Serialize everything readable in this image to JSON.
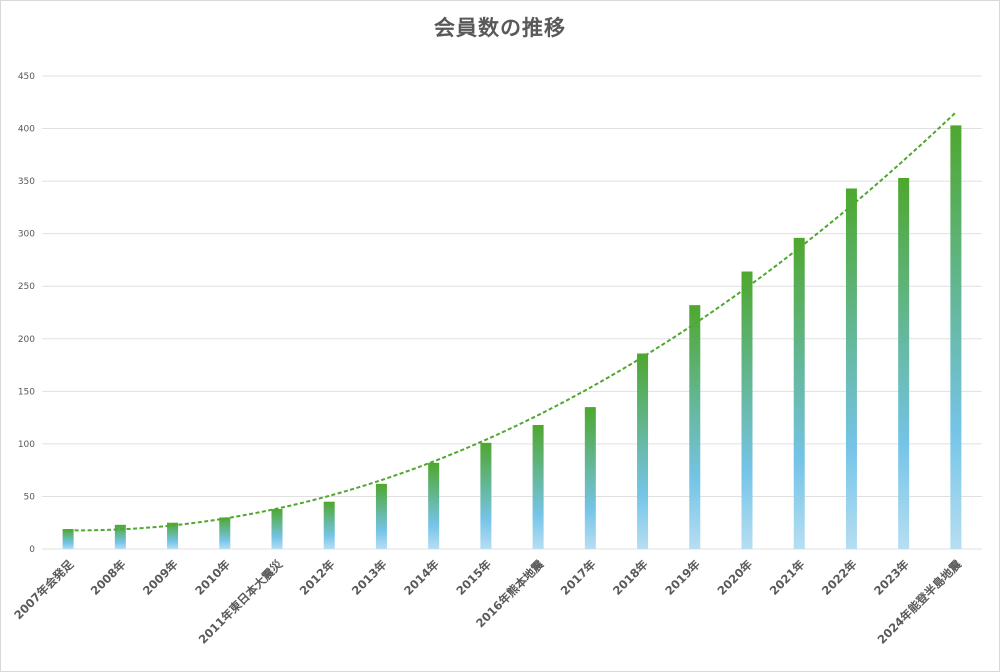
{
  "chart_data": {
    "type": "bar",
    "title": "会員数の推移",
    "categories": [
      "2007年会発足",
      "2008年",
      "2009年",
      "2010年",
      "2011年東日本大震災",
      "2012年",
      "2013年",
      "2014年",
      "2015年",
      "2016年熊本地震",
      "2017年",
      "2018年",
      "2019年",
      "2020年",
      "2021年",
      "2022年",
      "2023年",
      "2024年能登半島地震"
    ],
    "values": [
      19,
      23,
      25,
      30,
      38,
      45,
      62,
      82,
      101,
      118,
      135,
      186,
      232,
      264,
      296,
      343,
      353,
      403
    ],
    "ylim": [
      0,
      450
    ],
    "yticks": [
      0,
      50,
      100,
      150,
      200,
      250,
      300,
      350,
      400,
      450
    ],
    "xlabel": "",
    "ylabel": "",
    "grid": true,
    "legend": "none",
    "trendline": {
      "type": "polynomial",
      "style": "dashed",
      "color": "#4ea72e"
    },
    "colors": {
      "bar_top": "#4ea72e",
      "bar_mid": "#75c4e8",
      "bar_bottom": "#b6def2",
      "grid": "#e0e0e0",
      "text": "#595959"
    }
  }
}
